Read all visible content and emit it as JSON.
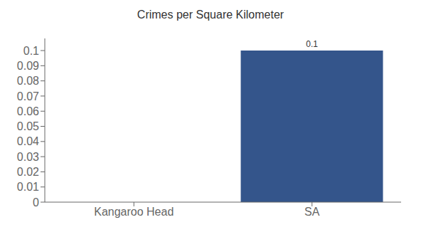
{
  "chart_data": {
    "type": "bar",
    "title": "Crimes per Square Kilometer",
    "categories": [
      "Kangaroo Head",
      "SA"
    ],
    "values": [
      0.0,
      0.1
    ],
    "color": "#34558b",
    "ylim": [
      0,
      0.108
    ],
    "yticks": [
      0,
      0.01,
      0.02,
      0.03,
      0.04,
      0.05,
      0.06,
      0.07,
      0.08,
      0.09,
      0.1
    ],
    "grid": false,
    "data_labels": true
  }
}
